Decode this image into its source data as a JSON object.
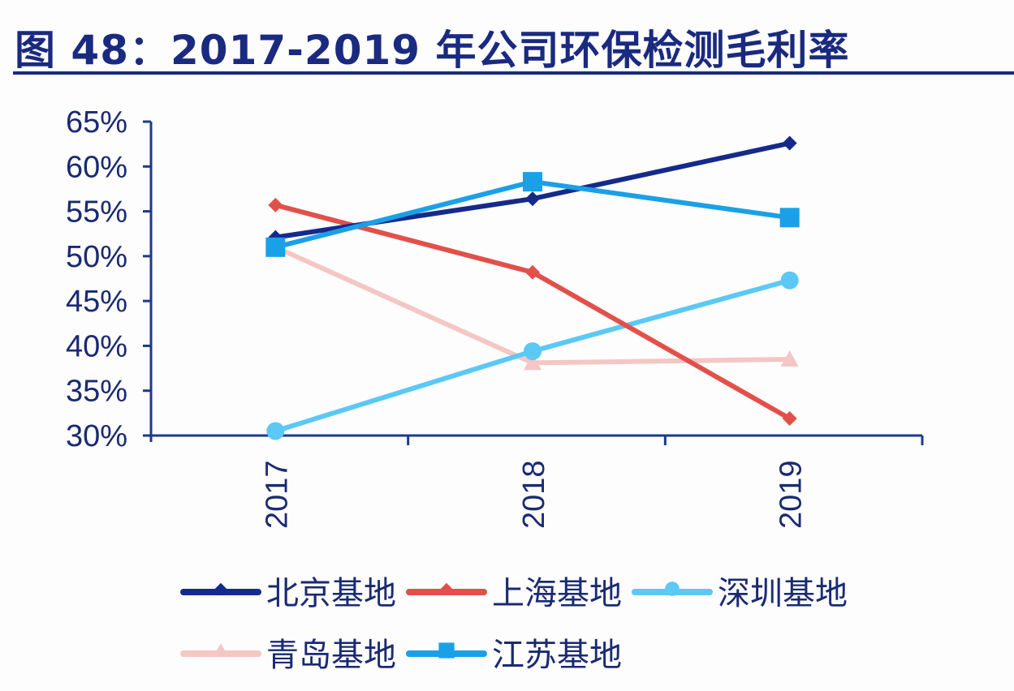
{
  "title": "图 48：2017-2019 年公司环保检测毛利率",
  "colors": {
    "title": "#1a2a80",
    "axis": "#1a3a8c",
    "beijing": "#152a8a",
    "shanghai": "#e2504a",
    "shenzhen": "#5bc8f5",
    "qingdao": "#f4c6c4",
    "jiangsu": "#1aa0e6"
  },
  "chart_data": {
    "type": "line",
    "title": "图 48：2017-2019 年公司环保检测毛利率",
    "xlabel": "",
    "ylabel": "",
    "categories": [
      "2017",
      "2018",
      "2019"
    ],
    "y_ticks": [
      "30%",
      "35%",
      "40%",
      "45%",
      "50%",
      "55%",
      "60%",
      "65%"
    ],
    "ylim": [
      30,
      65
    ],
    "y_unit": "%",
    "grid": false,
    "legend_position": "bottom",
    "series": [
      {
        "name": "北京基地",
        "marker": "diamond",
        "color": "#152a8a",
        "values": [
          52.1,
          56.4,
          62.6
        ]
      },
      {
        "name": "上海基地",
        "marker": "diamond",
        "color": "#e2504a",
        "values": [
          55.7,
          48.2,
          31.9
        ]
      },
      {
        "name": "深圳基地",
        "marker": "circle",
        "color": "#5bc8f5",
        "values": [
          30.5,
          39.4,
          47.3
        ]
      },
      {
        "name": "青岛基地",
        "marker": "triangle",
        "color": "#f4c6c4",
        "values": [
          51.0,
          38.1,
          38.5
        ]
      },
      {
        "name": "江苏基地",
        "marker": "square",
        "color": "#1aa0e6",
        "values": [
          51.0,
          58.3,
          54.3
        ]
      }
    ]
  },
  "legend": {
    "items": [
      {
        "label": "北京基地"
      },
      {
        "label": "上海基地"
      },
      {
        "label": "深圳基地"
      },
      {
        "label": "青岛基地"
      },
      {
        "label": "江苏基地"
      }
    ]
  }
}
